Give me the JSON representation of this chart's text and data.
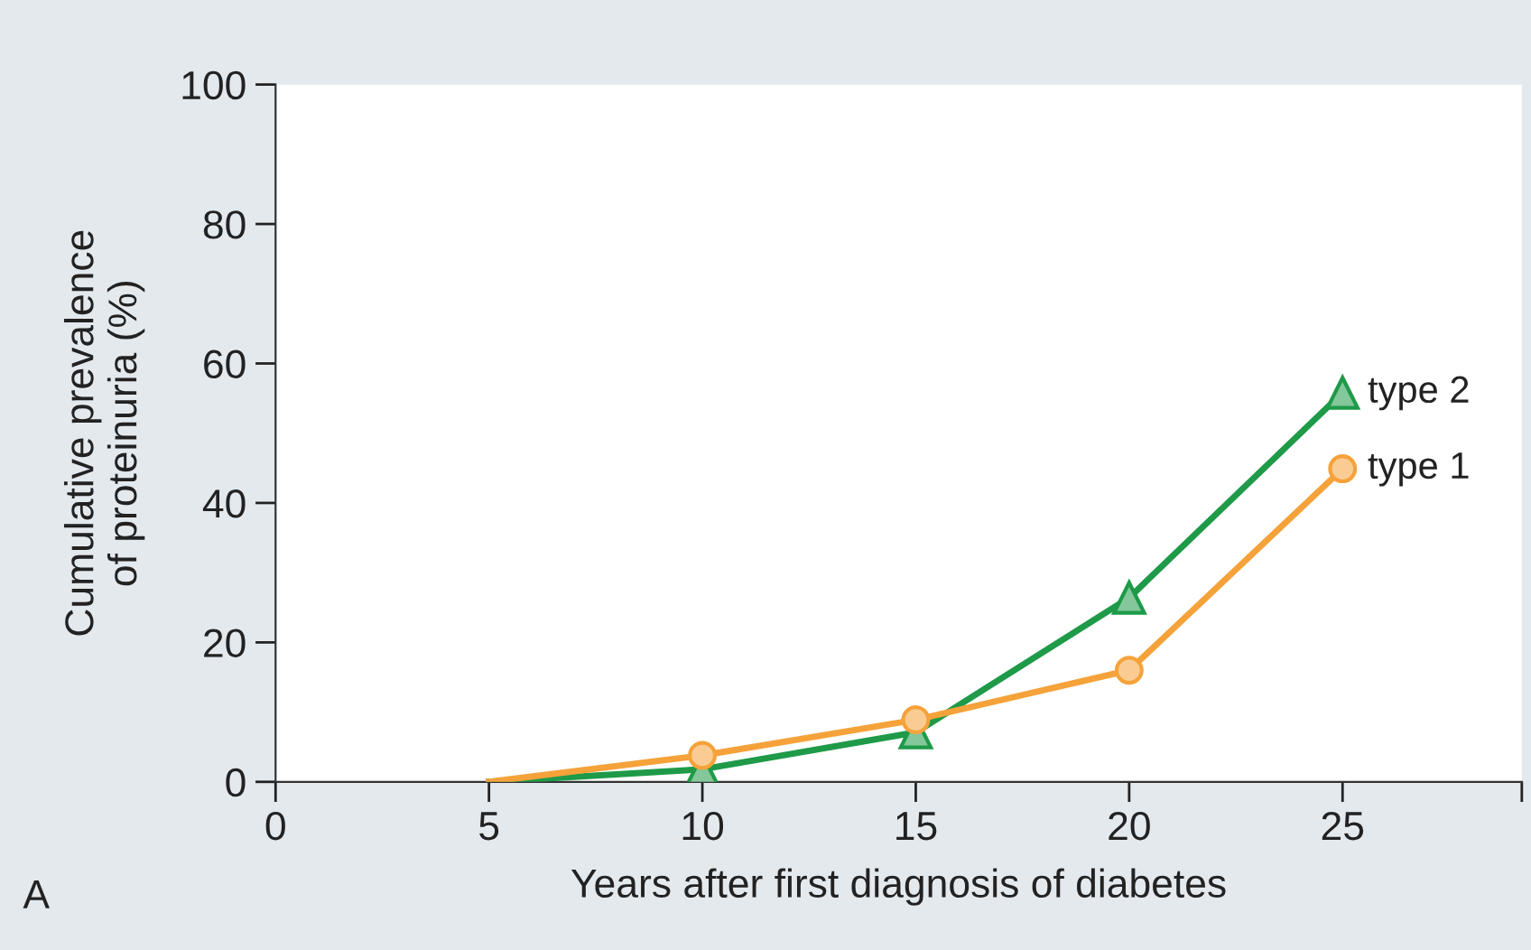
{
  "chart_data": {
    "type": "line",
    "xlabel": "Years after first diagnosis of diabetes",
    "ylabel": "Cumulative prevalence\nof proteinuria (%)",
    "x": [
      5,
      10,
      15,
      20,
      25
    ],
    "series": [
      {
        "name": "type 2",
        "color": "#1e9a48",
        "marker": "triangle",
        "values": [
          0,
          1.8,
          7.1,
          26.4,
          55.8
        ]
      },
      {
        "name": "type 1",
        "color": "#f5a23a",
        "marker": "circle",
        "values": [
          0,
          3.8,
          8.9,
          16,
          44.9
        ]
      }
    ],
    "xlim": [
      0,
      29.2
    ],
    "xticks": [
      0,
      5,
      10,
      15,
      20,
      25,
      {
        "value": 29.2,
        "label": null
      }
    ],
    "ylim": [
      0,
      100
    ],
    "yticks": [
      0,
      20,
      40,
      60,
      80,
      100
    ],
    "grid": false,
    "legend": false,
    "line_style": "solid",
    "annotations": [
      "A"
    ]
  }
}
